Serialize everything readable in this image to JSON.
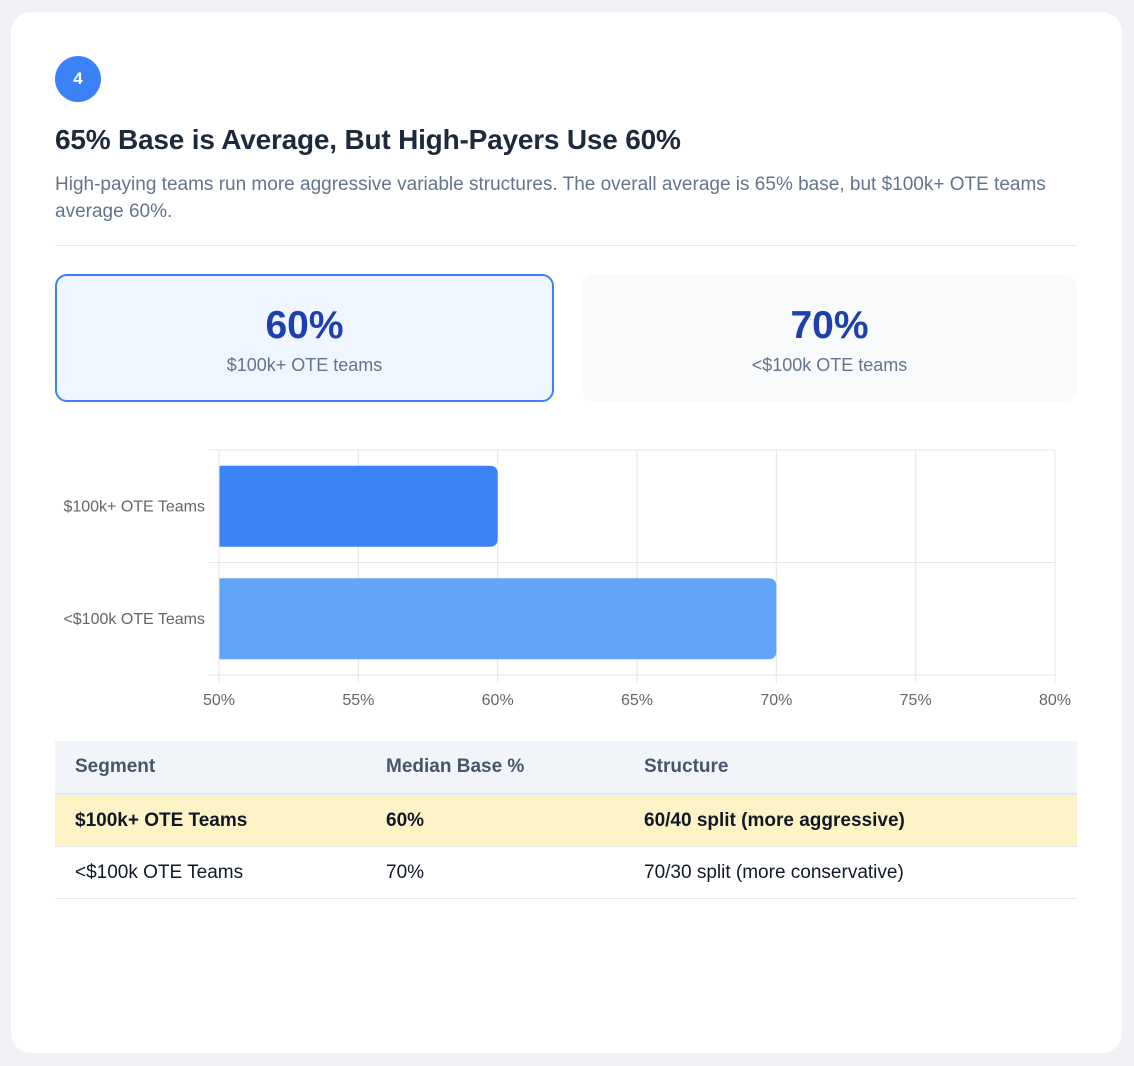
{
  "step": {
    "number": "4"
  },
  "header": {
    "title": "65% Base is Average, But High-Payers Use 60%",
    "subtitle": "High-paying teams run more aggressive variable structures. The overall average is 65% base, but $100k+ OTE teams average 60%."
  },
  "stats": [
    {
      "value": "60%",
      "label": "$100k+ OTE teams",
      "highlighted": true
    },
    {
      "value": "70%",
      "label": "<$100k OTE teams",
      "highlighted": false
    }
  ],
  "chart_data": {
    "type": "bar",
    "orientation": "horizontal",
    "categories": [
      "$100k+ OTE Teams",
      "<$100k OTE Teams"
    ],
    "values": [
      60,
      70
    ],
    "colors": [
      "#3b82f6",
      "#60a5fa"
    ],
    "xlim": [
      50,
      80
    ],
    "xticks": [
      "50%",
      "55%",
      "60%",
      "65%",
      "70%",
      "75%",
      "80%"
    ],
    "grid": true,
    "title": "",
    "xlabel": "",
    "ylabel": ""
  },
  "table": {
    "headers": [
      "Segment",
      "Median Base %",
      "Structure"
    ],
    "rows": [
      {
        "cells": [
          "$100k+ OTE Teams",
          "60%",
          "60/40 split (more aggressive)"
        ],
        "highlighted": true
      },
      {
        "cells": [
          "<$100k OTE Teams",
          "70%",
          "70/30 split (more conservative)"
        ],
        "highlighted": false
      }
    ]
  },
  "colors": {
    "accent": "#3b82f6",
    "stat_value": "#1e40af",
    "highlight_row": "#fef3c7"
  }
}
